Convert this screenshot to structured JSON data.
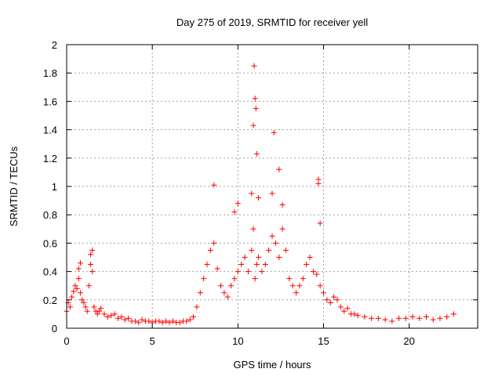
{
  "chart_data": {
    "type": "scatter",
    "title": "Day 275 of 2019, SRMTID for receiver yell",
    "xlabel": "GPS time / hours",
    "ylabel": "SRMTID / TECUs",
    "xlim": [
      0,
      24
    ],
    "ylim": [
      0,
      2
    ],
    "xticks": [
      0,
      5,
      10,
      15,
      20
    ],
    "yticks": [
      0,
      0.2,
      0.4,
      0.6,
      0.8,
      1,
      1.2,
      1.4,
      1.6,
      1.8,
      2
    ],
    "xtick_labels": [
      "0",
      "5",
      "10",
      "15",
      "20"
    ],
    "ytick_labels": [
      "0",
      "0.2",
      "0.4",
      "0.6",
      "0.8",
      "1",
      "1.2",
      "1.4",
      "1.6",
      "1.8",
      "2"
    ],
    "grid": true,
    "marker": "+",
    "color": "#ff0000",
    "series": [
      {
        "name": "SRMTID",
        "x": [
          0.0,
          0.1,
          0.2,
          0.3,
          0.4,
          0.5,
          0.6,
          0.7,
          0.8,
          0.9,
          1.0,
          1.1,
          1.2,
          1.3,
          1.4,
          1.5,
          1.6,
          1.7,
          1.8,
          1.9,
          2.0,
          2.2,
          2.4,
          2.6,
          2.8,
          3.0,
          3.2,
          3.4,
          3.6,
          3.8,
          4.0,
          4.2,
          4.4,
          4.6,
          4.8,
          5.0,
          5.2,
          5.4,
          5.6,
          5.8,
          6.0,
          6.2,
          6.4,
          6.6,
          6.8,
          7.0,
          7.2,
          7.4,
          7.6,
          7.8,
          8.0,
          8.2,
          8.4,
          8.6,
          8.8,
          9.0,
          9.2,
          9.4,
          9.6,
          9.8,
          10.0,
          10.2,
          10.4,
          10.6,
          10.8,
          10.9,
          11.0,
          11.1,
          11.2,
          11.4,
          11.6,
          11.8,
          12.0,
          12.2,
          12.4,
          12.6,
          12.8,
          13.0,
          13.2,
          13.4,
          13.6,
          13.8,
          14.0,
          14.2,
          14.4,
          14.6,
          14.8,
          15.0,
          15.2,
          15.4,
          15.6,
          15.8,
          16.0,
          16.2,
          16.4,
          16.6,
          16.8,
          17.0,
          17.4,
          17.8,
          18.2,
          18.6,
          19.0,
          19.4,
          19.8,
          20.2,
          20.6,
          21.0,
          21.4,
          21.8,
          22.2,
          22.6,
          8.6,
          10.95,
          11.0,
          11.05,
          10.9,
          11.1,
          12.1,
          12.4,
          14.7,
          14.7,
          14.8,
          10.0,
          9.8,
          10.8,
          11.2,
          12.0,
          12.6,
          1.4,
          1.5,
          0.7,
          0.8
        ],
        "y": [
          0.12,
          0.18,
          0.15,
          0.22,
          0.26,
          0.3,
          0.28,
          0.35,
          0.25,
          0.2,
          0.18,
          0.15,
          0.12,
          0.3,
          0.45,
          0.4,
          0.15,
          0.12,
          0.1,
          0.12,
          0.14,
          0.1,
          0.08,
          0.09,
          0.1,
          0.07,
          0.08,
          0.06,
          0.07,
          0.05,
          0.05,
          0.04,
          0.06,
          0.05,
          0.05,
          0.04,
          0.05,
          0.05,
          0.04,
          0.05,
          0.04,
          0.05,
          0.04,
          0.04,
          0.05,
          0.05,
          0.06,
          0.08,
          0.15,
          0.25,
          0.35,
          0.45,
          0.55,
          0.6,
          0.42,
          0.3,
          0.25,
          0.22,
          0.3,
          0.35,
          0.4,
          0.45,
          0.5,
          0.4,
          0.55,
          0.7,
          0.35,
          0.45,
          0.5,
          0.4,
          0.45,
          0.55,
          0.65,
          0.6,
          0.5,
          0.7,
          0.55,
          0.35,
          0.3,
          0.25,
          0.3,
          0.35,
          0.45,
          0.5,
          0.4,
          0.38,
          0.3,
          0.25,
          0.2,
          0.18,
          0.22,
          0.2,
          0.15,
          0.12,
          0.14,
          0.1,
          0.1,
          0.09,
          0.08,
          0.07,
          0.07,
          0.06,
          0.05,
          0.07,
          0.07,
          0.08,
          0.07,
          0.08,
          0.06,
          0.07,
          0.08,
          0.1,
          1.01,
          1.85,
          1.62,
          1.55,
          1.43,
          1.23,
          1.38,
          1.12,
          1.05,
          1.02,
          0.74,
          0.88,
          0.82,
          0.95,
          0.92,
          0.95,
          0.87,
          0.52,
          0.55,
          0.42,
          0.46
        ]
      }
    ]
  }
}
